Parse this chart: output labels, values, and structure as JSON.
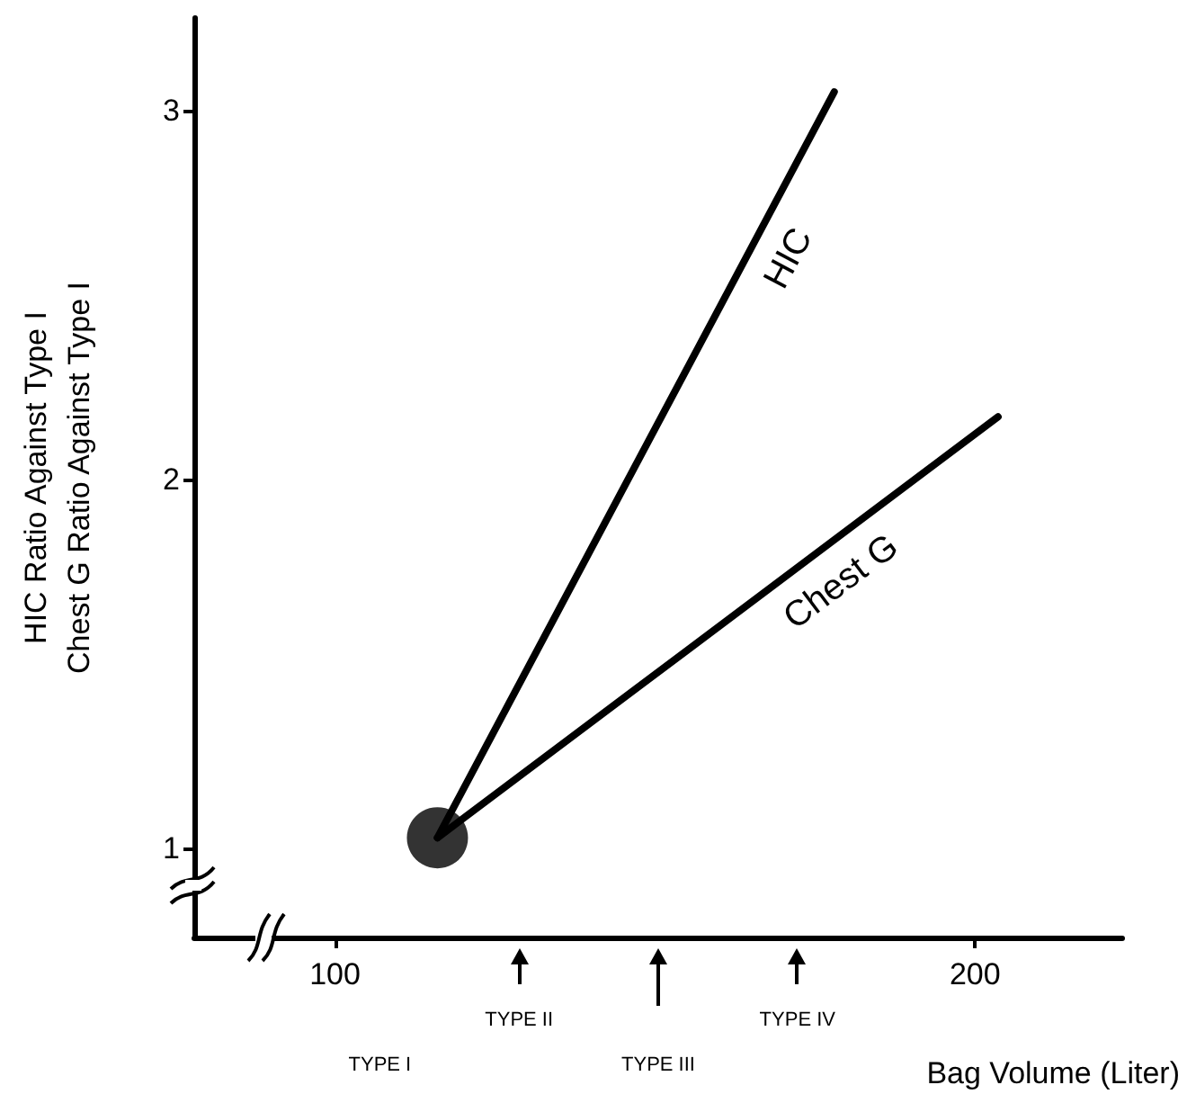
{
  "chart_data": {
    "type": "line",
    "xlabel": "Bag Volume (Liter)",
    "ylabel": "HIC Ratio Against Type I\nChest G Ratio Against Type I",
    "xlim": [
      78,
      223
    ],
    "xticks": [
      100,
      200
    ],
    "annotations": [
      "TYPE I",
      "TYPE II",
      "TYPE III",
      "TYPE IV"
    ],
    "ylim": [
      0.76,
      3.25
    ],
    "yticks": [
      1,
      2,
      3
    ],
    "grid": false,
    "legend": false,
    "marker": "none",
    "line_style": "solid",
    "series": [
      {
        "name": "HIC",
        "color": "#000000",
        "x": [
          116,
          178
        ],
        "values": [
          1.03,
          3.05
        ]
      },
      {
        "name": "Chest G",
        "color": "#000000",
        "x": [
          116,
          203.6
        ],
        "values": [
          1.03,
          2.17
        ]
      },
      {
        "type": "scatter",
        "marker": "circle",
        "color": "#000000",
        "x": [
          116
        ],
        "values": [
          1.03
        ]
      }
    ]
  }
}
